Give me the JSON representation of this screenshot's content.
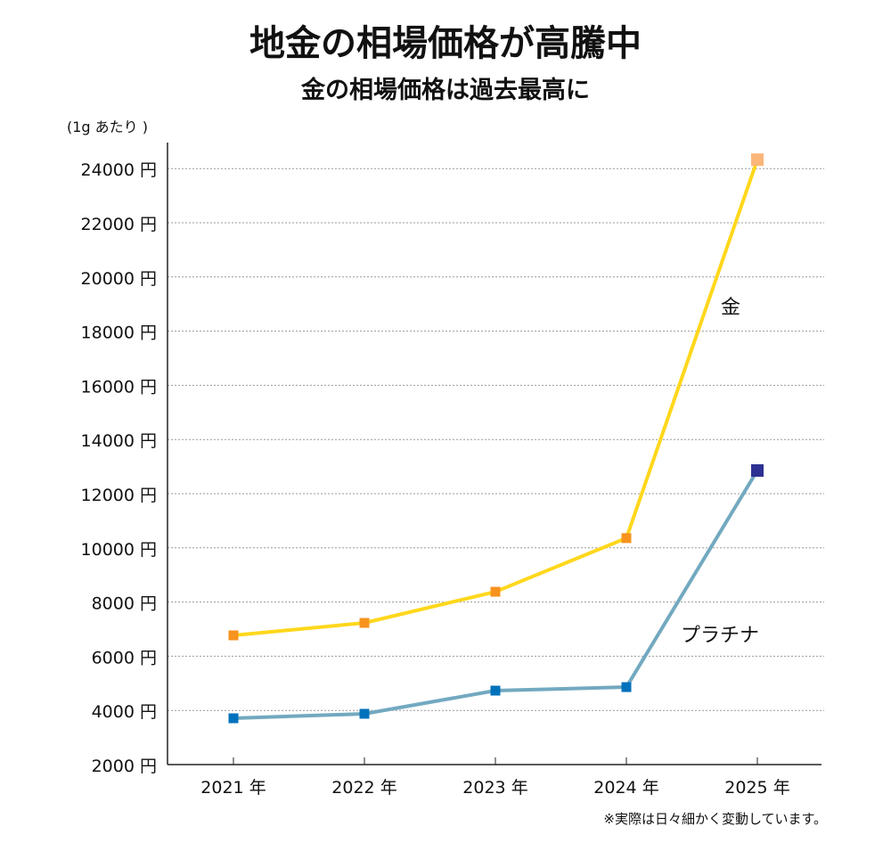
{
  "chart_data": {
    "type": "line",
    "title": "地金の相場価格が高騰中",
    "subtitle": "金の相場価格は過去最高に",
    "unit_note": "(1g あたり )",
    "footnote": "※実際は日々細かく変動しています。",
    "categories": [
      "2021 年",
      "2022 年",
      "2023 年",
      "2024 年",
      "2025 年"
    ],
    "y_ticks": [
      "2000 円",
      "4000 円",
      "6000 円",
      "8000 円",
      "10000 円",
      "12000 円",
      "14000 円",
      "16000 円",
      "18000 円",
      "20000 円",
      "22000 円",
      "24000 円"
    ],
    "ylim": [
      2000,
      25000
    ],
    "grid": "horizontal dotted",
    "series": [
      {
        "name": "金",
        "values": [
          6770,
          7230,
          8380,
          10360,
          24330
        ],
        "line_color": "#ffd71c",
        "marker_color": "#f7931e",
        "last_marker_color": "#fbb67a"
      },
      {
        "name": "プラチナ",
        "values": [
          3710,
          3875,
          4730,
          4860,
          12855
        ],
        "line_color": "#72a9c0",
        "marker_color": "#0071bc",
        "last_marker_color": "#2e3192"
      }
    ]
  }
}
